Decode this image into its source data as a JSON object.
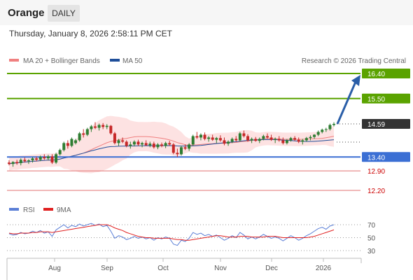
{
  "header": {
    "symbol": "Orange",
    "period": "DAILY",
    "timestamp": "Thursday, January 8, 2026 2:58:11 PM CET"
  },
  "legend": {
    "ma20_label": "MA 20 + Bollinger Bands",
    "ma50_label": "MA 50",
    "copyright": "Research © 2026 Trading Central"
  },
  "colors": {
    "resistance": "#5aa300",
    "support": "#3b6fd4",
    "support_low": "#e07070",
    "current": "#333333",
    "candle_up": "#2e7d32",
    "candle_down": "#c62828",
    "ma20": "#f08080",
    "ma50": "#1f4e99",
    "bollinger_fill": "#fde2e2",
    "rsi": "#5b7fd6",
    "rsi_ma": "#e02020",
    "arrow": "#2a5ea8"
  },
  "chart_data": [
    {
      "type": "candlestick",
      "ylim": [
        11.9,
        16.7
      ],
      "x_ticks": [
        "Aug",
        "Sep",
        "Oct",
        "Nov",
        "Dec",
        "2026"
      ],
      "levels": [
        {
          "label": "16.40",
          "value": 16.4,
          "kind": "resistance"
        },
        {
          "label": "15.50",
          "value": 15.5,
          "kind": "resistance"
        },
        {
          "label": "14.59",
          "value": 14.59,
          "kind": "current"
        },
        {
          "label": "13.40",
          "value": 13.4,
          "kind": "support"
        },
        {
          "label": "12.90",
          "value": 12.9,
          "kind": "support_low"
        },
        {
          "label": "12.20",
          "value": 12.2,
          "kind": "support_low"
        }
      ],
      "candles": [
        [
          13.2,
          13.28,
          13.1,
          13.15
        ],
        [
          13.15,
          13.25,
          13.05,
          13.22
        ],
        [
          13.22,
          13.3,
          13.12,
          13.18
        ],
        [
          13.18,
          13.35,
          13.1,
          13.3
        ],
        [
          13.3,
          13.38,
          13.2,
          13.25
        ],
        [
          13.25,
          13.32,
          13.15,
          13.28
        ],
        [
          13.28,
          13.4,
          13.2,
          13.35
        ],
        [
          13.35,
          13.42,
          13.25,
          13.3
        ],
        [
          13.3,
          13.45,
          13.25,
          13.4
        ],
        [
          13.4,
          13.5,
          13.3,
          13.35
        ],
        [
          13.35,
          13.48,
          13.28,
          13.42
        ],
        [
          13.42,
          13.5,
          13.15,
          13.2
        ],
        [
          13.2,
          13.55,
          13.15,
          13.5
        ],
        [
          13.5,
          13.7,
          13.45,
          13.65
        ],
        [
          13.65,
          13.95,
          13.6,
          13.9
        ],
        [
          13.9,
          14.0,
          13.7,
          13.8
        ],
        [
          13.8,
          14.1,
          13.75,
          14.05
        ],
        [
          13.9,
          14.05,
          13.85,
          14.0
        ],
        [
          14.0,
          14.3,
          13.95,
          14.25
        ],
        [
          14.25,
          14.4,
          14.1,
          14.2
        ],
        [
          14.2,
          14.45,
          14.15,
          14.4
        ],
        [
          14.4,
          14.55,
          14.3,
          14.5
        ],
        [
          14.5,
          14.65,
          14.4,
          14.45
        ],
        [
          14.45,
          14.6,
          14.35,
          14.55
        ],
        [
          14.55,
          14.62,
          14.4,
          14.48
        ],
        [
          14.48,
          14.58,
          14.4,
          14.52
        ],
        [
          14.52,
          14.55,
          14.2,
          14.25
        ],
        [
          14.25,
          14.3,
          13.85,
          13.9
        ],
        [
          13.9,
          14.05,
          13.8,
          14.0
        ],
        [
          14.0,
          14.1,
          13.9,
          13.95
        ],
        [
          13.95,
          14.0,
          13.75,
          13.8
        ],
        [
          13.8,
          13.95,
          13.7,
          13.85
        ],
        [
          13.85,
          14.0,
          13.78,
          13.95
        ],
        [
          13.95,
          14.02,
          13.8,
          13.85
        ],
        [
          13.85,
          13.95,
          13.75,
          13.9
        ],
        [
          13.9,
          14.0,
          13.8,
          13.82
        ],
        [
          13.82,
          13.95,
          13.75,
          13.88
        ],
        [
          13.88,
          13.95,
          13.7,
          13.75
        ],
        [
          13.75,
          13.9,
          13.68,
          13.85
        ],
        [
          13.85,
          13.92,
          13.75,
          13.8
        ],
        [
          13.8,
          13.95,
          13.72,
          13.9
        ],
        [
          13.9,
          13.98,
          13.8,
          13.85
        ],
        [
          13.85,
          13.9,
          13.5,
          13.55
        ],
        [
          13.55,
          13.7,
          13.4,
          13.5
        ],
        [
          13.5,
          13.8,
          13.45,
          13.75
        ],
        [
          13.75,
          13.85,
          13.65,
          13.7
        ],
        [
          13.7,
          13.9,
          13.62,
          13.85
        ],
        [
          13.85,
          14.2,
          13.8,
          14.15
        ],
        [
          14.15,
          14.3,
          14.05,
          14.1
        ],
        [
          14.1,
          14.25,
          14.0,
          14.2
        ],
        [
          14.2,
          14.28,
          14.0,
          14.05
        ],
        [
          14.05,
          14.15,
          13.95,
          14.1
        ],
        [
          14.1,
          14.2,
          13.98,
          14.02
        ],
        [
          14.02,
          14.12,
          13.9,
          14.08
        ],
        [
          14.08,
          14.18,
          13.95,
          14.0
        ],
        [
          14.0,
          14.1,
          13.82,
          13.88
        ],
        [
          13.88,
          14.0,
          13.8,
          13.95
        ],
        [
          13.95,
          14.1,
          13.9,
          14.05
        ],
        [
          14.05,
          14.15,
          13.95,
          14.0
        ],
        [
          14.0,
          14.3,
          13.95,
          14.25
        ],
        [
          14.25,
          14.35,
          14.1,
          14.15
        ],
        [
          14.15,
          14.22,
          13.95,
          14.0
        ],
        [
          14.0,
          14.1,
          13.9,
          14.05
        ],
        [
          14.05,
          14.12,
          13.95,
          13.98
        ],
        [
          13.98,
          14.1,
          13.9,
          14.05
        ],
        [
          14.05,
          14.2,
          14.0,
          14.15
        ],
        [
          14.15,
          14.25,
          14.05,
          14.1
        ],
        [
          14.1,
          14.2,
          13.98,
          14.02
        ],
        [
          14.02,
          14.1,
          13.9,
          14.05
        ],
        [
          14.05,
          14.15,
          13.95,
          14.0
        ],
        [
          14.0,
          14.1,
          13.85,
          13.9
        ],
        [
          13.9,
          14.05,
          13.85,
          14.0
        ],
        [
          14.0,
          14.12,
          13.95,
          14.08
        ],
        [
          14.08,
          14.15,
          13.98,
          14.02
        ],
        [
          14.02,
          14.1,
          13.9,
          13.95
        ],
        [
          13.95,
          14.05,
          13.85,
          14.0
        ],
        [
          14.0,
          14.12,
          13.95,
          14.08
        ],
        [
          14.08,
          14.18,
          14.0,
          14.12
        ],
        [
          14.12,
          14.22,
          14.05,
          14.2
        ],
        [
          14.2,
          14.35,
          14.15,
          14.3
        ],
        [
          14.3,
          14.42,
          14.25,
          14.38
        ],
        [
          14.38,
          14.45,
          14.3,
          14.4
        ],
        [
          14.4,
          14.6,
          14.35,
          14.55
        ],
        [
          14.55,
          14.65,
          14.5,
          14.59
        ]
      ]
    },
    {
      "type": "line",
      "legend": [
        "RSI",
        "9MA"
      ],
      "ylim": [
        20,
        80
      ],
      "y_ticks": [
        70,
        50,
        30
      ],
      "series": [
        {
          "name": "RSI",
          "values": [
            56,
            54,
            55,
            58,
            56,
            57,
            60,
            58,
            61,
            57,
            59,
            52,
            62,
            66,
            70,
            65,
            69,
            67,
            71,
            68,
            70,
            72,
            69,
            71,
            67,
            69,
            60,
            49,
            53,
            51,
            47,
            49,
            52,
            49,
            51,
            48,
            50,
            46,
            50,
            48,
            51,
            49,
            40,
            38,
            46,
            44,
            49,
            58,
            55,
            57,
            53,
            55,
            52,
            54,
            50,
            46,
            49,
            53,
            50,
            58,
            54,
            48,
            51,
            48,
            51,
            55,
            52,
            49,
            51,
            49,
            45,
            49,
            53,
            50,
            46,
            49,
            53,
            56,
            60,
            64,
            66,
            63,
            68,
            70
          ]
        },
        {
          "name": "9MA",
          "values": [
            57,
            56,
            56,
            57,
            57,
            57,
            58,
            58,
            59,
            59,
            59,
            58,
            59,
            60,
            61,
            62,
            63,
            64,
            65,
            66,
            67,
            68,
            69,
            70,
            70,
            70,
            68,
            65,
            63,
            61,
            58,
            56,
            54,
            52,
            51,
            50,
            50,
            49,
            49,
            49,
            49,
            49,
            48,
            47,
            47,
            46,
            46,
            47,
            48,
            49,
            50,
            51,
            52,
            53,
            53,
            52,
            51,
            51,
            51,
            52,
            52,
            52,
            51,
            51,
            51,
            51,
            52,
            52,
            52,
            51,
            50,
            50,
            50,
            50,
            50,
            50,
            50,
            51,
            52,
            54,
            56,
            58,
            60,
            62
          ]
        }
      ]
    }
  ]
}
